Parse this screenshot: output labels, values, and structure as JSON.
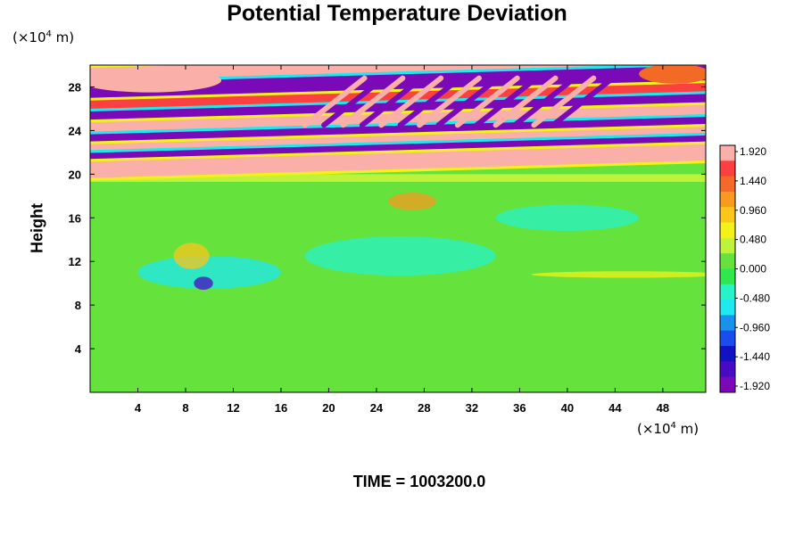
{
  "chart_data": {
    "type": "heatmap",
    "title": "Potential Temperature Deviation",
    "ylabel": "Height",
    "y_unit": {
      "prefix": "(×10",
      "exp": "4",
      "suffix": " m)"
    },
    "x_unit": {
      "prefix": "(×10",
      "exp": "4",
      "suffix": " m)"
    },
    "time_label": "TIME = 1003200.0",
    "xlim": [
      0,
      51.6
    ],
    "ylim": [
      0,
      30
    ],
    "xticks": [
      4,
      8,
      12,
      16,
      20,
      24,
      28,
      32,
      36,
      40,
      44,
      48
    ],
    "yticks": [
      4,
      8,
      12,
      16,
      20,
      24,
      28
    ],
    "colorbar": {
      "range": [
        -2.0,
        2.0
      ],
      "labels": [
        "1.920",
        "1.440",
        "0.960",
        "0.480",
        "0.000",
        "-0.480",
        "-0.960",
        "-1.440",
        "-1.920"
      ],
      "colors": [
        "#fab0a8",
        "#fa4040",
        "#f26a25",
        "#f79a1f",
        "#fbc61b",
        "#f2f21a",
        "#bff23a",
        "#66e23c",
        "#32e650",
        "#28f2c8",
        "#1ee8f0",
        "#1b91ee",
        "#1a4dee",
        "#1212c0",
        "#4a0ac2",
        "#7a0ab8"
      ]
    },
    "bands": [
      {
        "y": 29.0,
        "value": 1.9,
        "desc": "warm band top"
      },
      {
        "y": 27.6,
        "value": -1.9
      },
      {
        "y": 26.0,
        "value": 1.6
      },
      {
        "y": 25.0,
        "value": -1.9
      },
      {
        "y": 24.0,
        "value": 1.92
      },
      {
        "y": 22.9,
        "value": -1.92
      },
      {
        "y": 22.0,
        "value": 1.92
      },
      {
        "y": 21.2,
        "value": -1.92
      },
      {
        "y": 20.4,
        "value": 1.92
      }
    ],
    "lower_field_value": 0.05
  }
}
